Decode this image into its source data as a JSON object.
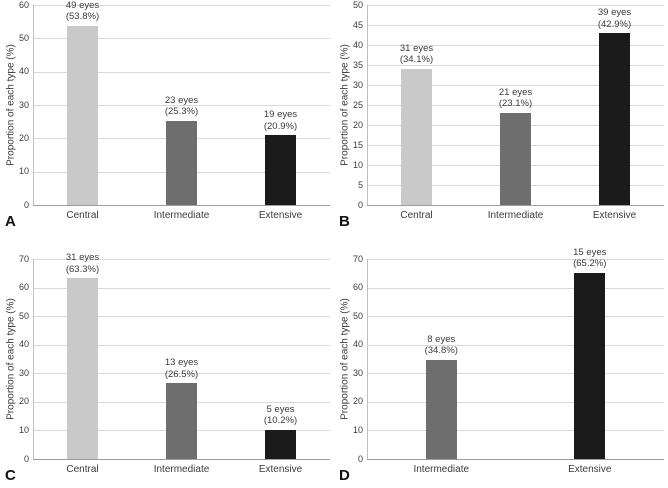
{
  "figure": {
    "background": "#ffffff",
    "description": "Four-panel bar chart figure comparing proportion of eye types"
  },
  "style": {
    "text_color": "#3b3b3b",
    "gridline_color": "#d9d9d9",
    "axis_color": "#9e9e9e",
    "bar_colors": {
      "Central": "#c9c9c9",
      "Intermediate": "#6e6e6e",
      "Extensive": "#1b1b1b"
    }
  },
  "chart_data": [
    {
      "type": "bar",
      "panel": "A",
      "title": "",
      "xlabel": "",
      "ylabel": "Proportion of each type (%)",
      "ylim": [
        0,
        60
      ],
      "yticks": [
        0,
        10,
        20,
        30,
        40,
        50,
        60
      ],
      "grid": true,
      "legend": false,
      "categories": [
        "Central",
        "Intermediate",
        "Extensive"
      ],
      "values": [
        53.8,
        25.3,
        20.9
      ],
      "bars": [
        {
          "category": "Central",
          "count_label": "49 eyes",
          "pct_label": "(53.8%)",
          "value": 53.8,
          "color": "#c9c9c9"
        },
        {
          "category": "Intermediate",
          "count_label": "23 eyes",
          "pct_label": "(25.3%)",
          "value": 25.3,
          "color": "#6e6e6e"
        },
        {
          "category": "Extensive",
          "count_label": "19 eyes",
          "pct_label": "(20.9%)",
          "value": 20.9,
          "color": "#1b1b1b"
        }
      ]
    },
    {
      "type": "bar",
      "panel": "B",
      "title": "",
      "xlabel": "",
      "ylabel": "Proportion of each type (%)",
      "ylim": [
        0,
        50
      ],
      "yticks": [
        0,
        5,
        10,
        15,
        20,
        25,
        30,
        35,
        40,
        45,
        50
      ],
      "grid": true,
      "legend": false,
      "categories": [
        "Central",
        "Intermediate",
        "Extensive"
      ],
      "values": [
        34.1,
        23.1,
        42.9
      ],
      "bars": [
        {
          "category": "Central",
          "count_label": "31 eyes",
          "pct_label": "(34.1%)",
          "value": 34.1,
          "color": "#c9c9c9"
        },
        {
          "category": "Intermediate",
          "count_label": "21 eyes",
          "pct_label": "(23.1%)",
          "value": 23.1,
          "color": "#6e6e6e"
        },
        {
          "category": "Extensive",
          "count_label": "39 eyes",
          "pct_label": "(42.9%)",
          "value": 42.9,
          "color": "#1b1b1b"
        }
      ]
    },
    {
      "type": "bar",
      "panel": "C",
      "title": "",
      "xlabel": "",
      "ylabel": "Proportion of each type (%)",
      "ylim": [
        0,
        70
      ],
      "yticks": [
        0,
        10,
        20,
        30,
        40,
        50,
        60,
        70
      ],
      "grid": true,
      "legend": false,
      "categories": [
        "Central",
        "Intermediate",
        "Extensive"
      ],
      "values": [
        63.3,
        26.5,
        10.2
      ],
      "bars": [
        {
          "category": "Central",
          "count_label": "31 eyes",
          "pct_label": "(63.3%)",
          "value": 63.3,
          "color": "#c9c9c9"
        },
        {
          "category": "Intermediate",
          "count_label": "13 eyes",
          "pct_label": "(26.5%)",
          "value": 26.5,
          "color": "#6e6e6e"
        },
        {
          "category": "Extensive",
          "count_label": "5 eyes",
          "pct_label": "(10.2%)",
          "value": 10.2,
          "color": "#1b1b1b"
        }
      ]
    },
    {
      "type": "bar",
      "panel": "D",
      "title": "",
      "xlabel": "",
      "ylabel": "Proportion of each type (%)",
      "ylim": [
        0,
        70
      ],
      "yticks": [
        0,
        10,
        20,
        30,
        40,
        50,
        60,
        70
      ],
      "grid": true,
      "legend": false,
      "categories": [
        "Intermediate",
        "Extensive"
      ],
      "values": [
        34.8,
        65.2
      ],
      "bars": [
        {
          "category": "Intermediate",
          "count_label": "8 eyes",
          "pct_label": "(34.8%)",
          "value": 34.8,
          "color": "#6e6e6e"
        },
        {
          "category": "Extensive",
          "count_label": "15 eyes",
          "pct_label": "(65.2%)",
          "value": 65.2,
          "color": "#1b1b1b"
        }
      ]
    }
  ]
}
